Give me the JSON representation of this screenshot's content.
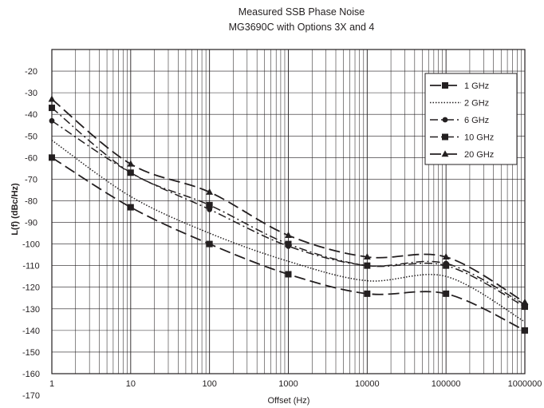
{
  "chart_data": {
    "type": "line",
    "title": "Measured SSB Phase Noise",
    "subtitle": "MG3690C with Options 3X and 4",
    "xlabel": "Offset (Hz)",
    "ylabel": "L(f) (dBc/Hz)",
    "x_scale": "log",
    "xlim": [
      1,
      1000000
    ],
    "ylim": [
      -160,
      -10
    ],
    "x_ticks": [
      "1",
      "10",
      "100",
      "1000",
      "10000",
      "100000",
      "1000000"
    ],
    "y_ticks": [
      "-20",
      "-30",
      "-40",
      "-50",
      "-60",
      "-70",
      "-80",
      "-90",
      "-100",
      "-110",
      "-120",
      "-130",
      "-140",
      "-150",
      "-160",
      "-170"
    ],
    "grid": true,
    "legend_position": "top-right",
    "x": [
      1,
      10,
      100,
      1000,
      10000,
      100000,
      1000000
    ],
    "series": [
      {
        "name": "1 GHz",
        "line_style": "long-dash",
        "marker": "square",
        "values": [
          -60,
          -83,
          -100,
          -114,
          -123,
          -123,
          -140
        ]
      },
      {
        "name": "2 GHz",
        "line_style": "dotted",
        "marker": "none",
        "values": [
          -52,
          -78,
          -95,
          -108,
          -117,
          -115,
          -136
        ]
      },
      {
        "name": "6 GHz",
        "line_style": "dash-dot",
        "marker": "circle",
        "values": [
          -43,
          -67,
          -84,
          -101,
          -110,
          -109,
          -128
        ]
      },
      {
        "name": "10 GHz",
        "line_style": "dash-dot",
        "marker": "square",
        "values": [
          -37,
          -67,
          -82,
          -100,
          -110,
          -110,
          -129
        ]
      },
      {
        "name": "20 GHz",
        "line_style": "long-dash",
        "marker": "triangle",
        "values": [
          -33,
          -63,
          -76,
          -96,
          -106,
          -106,
          -127
        ]
      }
    ]
  }
}
